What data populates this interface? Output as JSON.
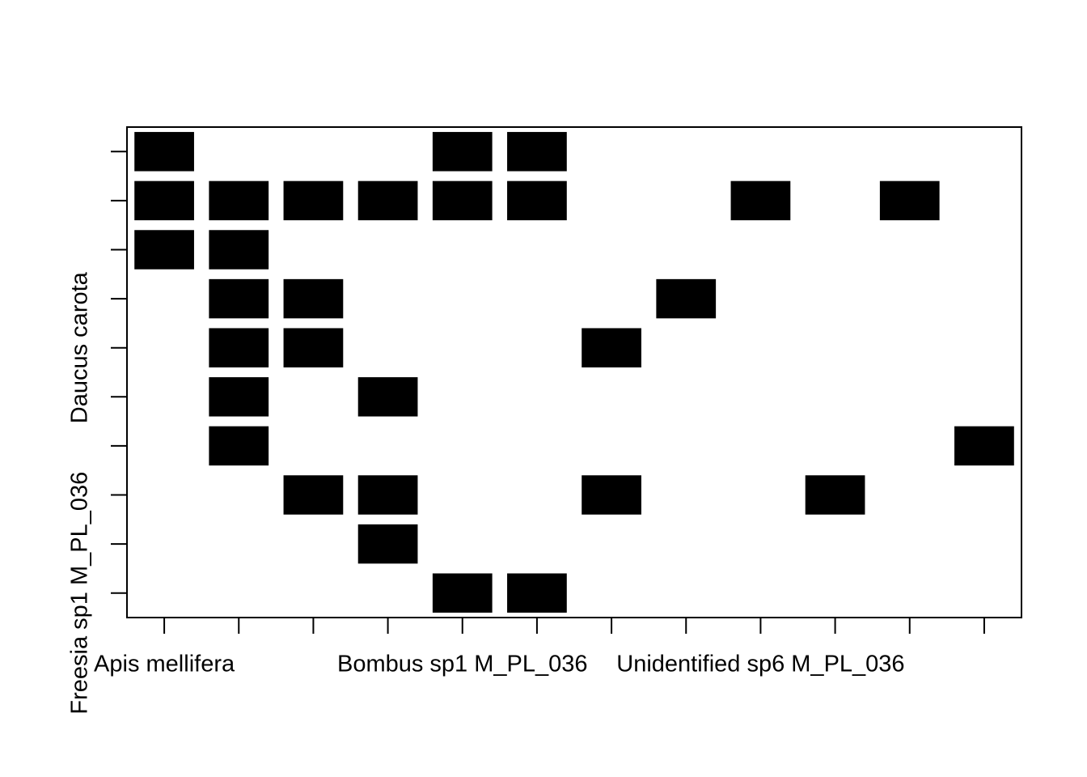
{
  "chart_data": {
    "type": "matrix",
    "x_categories": [
      "Apis mellifera",
      null,
      null,
      null,
      "Bombus sp1 M_PL_036",
      null,
      null,
      null,
      "Unidentified sp6 M_PL_036",
      null,
      null,
      null
    ],
    "y_categories": [
      null,
      null,
      null,
      null,
      "Daucus carota",
      null,
      null,
      null,
      null,
      "Freesia sp1 M_PL_036"
    ],
    "values": [
      [
        1,
        0,
        0,
        0,
        1,
        1,
        0,
        0,
        0,
        0,
        0,
        0
      ],
      [
        1,
        1,
        1,
        1,
        1,
        1,
        0,
        0,
        1,
        0,
        1,
        0
      ],
      [
        1,
        1,
        0,
        0,
        0,
        0,
        0,
        0,
        0,
        0,
        0,
        0
      ],
      [
        0,
        1,
        1,
        0,
        0,
        0,
        0,
        1,
        0,
        0,
        0,
        0
      ],
      [
        0,
        1,
        1,
        0,
        0,
        0,
        1,
        0,
        0,
        0,
        0,
        0
      ],
      [
        0,
        1,
        0,
        1,
        0,
        0,
        0,
        0,
        0,
        0,
        0,
        0
      ],
      [
        0,
        1,
        0,
        0,
        0,
        0,
        0,
        0,
        0,
        0,
        0,
        1
      ],
      [
        0,
        0,
        1,
        1,
        0,
        0,
        1,
        0,
        0,
        1,
        0,
        0
      ],
      [
        0,
        0,
        0,
        1,
        0,
        0,
        0,
        0,
        0,
        0,
        0,
        0
      ],
      [
        0,
        0,
        0,
        0,
        1,
        1,
        0,
        0,
        0,
        0,
        0,
        0
      ]
    ],
    "colors": [
      "#ffffff",
      "#000000"
    ]
  }
}
